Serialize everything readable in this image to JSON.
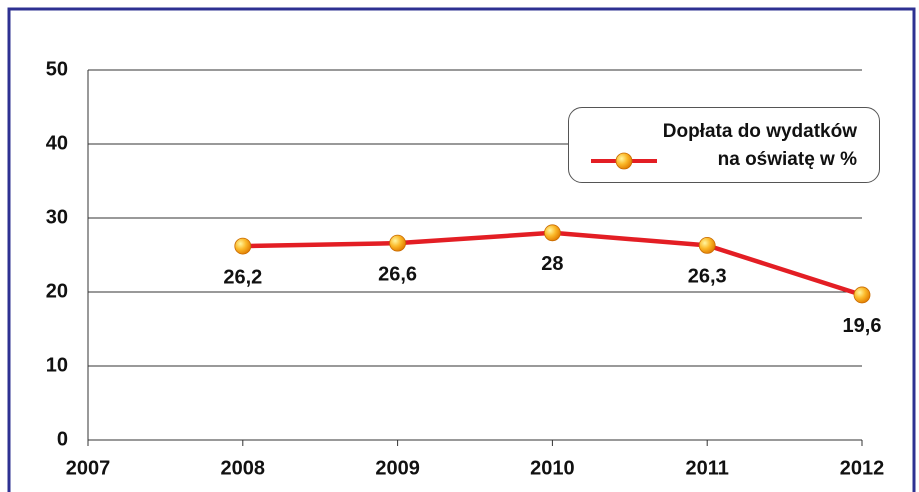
{
  "chart_data": {
    "type": "line",
    "categories": [
      "2007",
      "2008",
      "2009",
      "2010",
      "2011",
      "2012"
    ],
    "series": [
      {
        "name": "Dopłata do wydatków na oświatę w %",
        "color": "#e31e24",
        "values": [
          null,
          26.2,
          26.6,
          28,
          26.3,
          19.6
        ],
        "value_labels": [
          null,
          "26,2",
          "26,6",
          "28",
          "26,3",
          "19,6"
        ]
      }
    ],
    "ylim": [
      0,
      50
    ],
    "yticks": [
      0,
      10,
      20,
      30,
      40,
      50
    ],
    "grid": true,
    "legend": "upper right"
  }
}
